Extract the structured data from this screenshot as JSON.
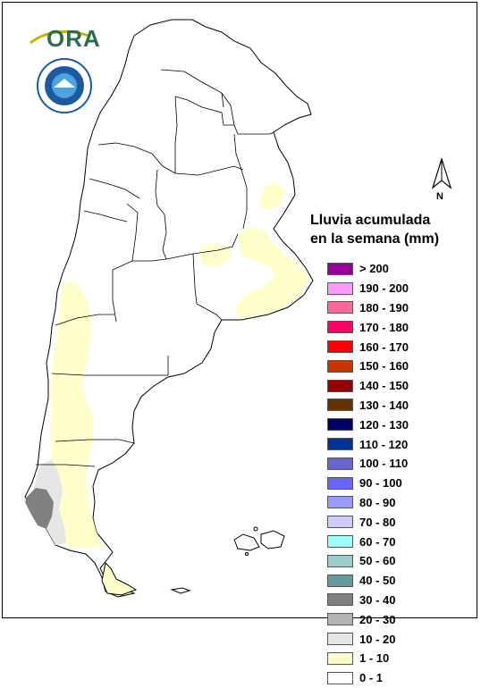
{
  "header": {
    "org_logo_text": "ORA",
    "seal_icon": "weather-service-seal-icon"
  },
  "north_arrow": {
    "label": "N"
  },
  "legend": {
    "title_line1": "Lluvia acumulada",
    "title_line2": "en la semana (mm)",
    "items": [
      {
        "label": "> 200",
        "color": "#990099"
      },
      {
        "label": "190 - 200",
        "color": "#ff99ff"
      },
      {
        "label": "180 - 190",
        "color": "#ff6699"
      },
      {
        "label": "170 - 180",
        "color": "#ff0066"
      },
      {
        "label": "160 - 170",
        "color": "#ff0000"
      },
      {
        "label": "150 - 160",
        "color": "#cc3300"
      },
      {
        "label": "140 - 150",
        "color": "#990000"
      },
      {
        "label": "130 - 140",
        "color": "#663300"
      },
      {
        "label": "120 - 130",
        "color": "#000066"
      },
      {
        "label": "110 - 120",
        "color": "#003399"
      },
      {
        "label": "100 - 110",
        "color": "#6666cc"
      },
      {
        "label": "90 - 100",
        "color": "#6666ff"
      },
      {
        "label": "80 - 90",
        "color": "#9999ff"
      },
      {
        "label": "70 - 80",
        "color": "#ccccff"
      },
      {
        "label": "60 - 70",
        "color": "#99ffff"
      },
      {
        "label": "50 - 60",
        "color": "#99cccc"
      },
      {
        "label": "40 - 50",
        "color": "#669999"
      },
      {
        "label": "30 - 40",
        "color": "#808080"
      },
      {
        "label": "20 - 30",
        "color": "#b3b3b3"
      },
      {
        "label": "10 - 20",
        "color": "#e6e6e6"
      },
      {
        "label": "1 - 10",
        "color": "#ffffcc"
      },
      {
        "label": "0 - 1",
        "color": "#ffffff"
      }
    ]
  }
}
